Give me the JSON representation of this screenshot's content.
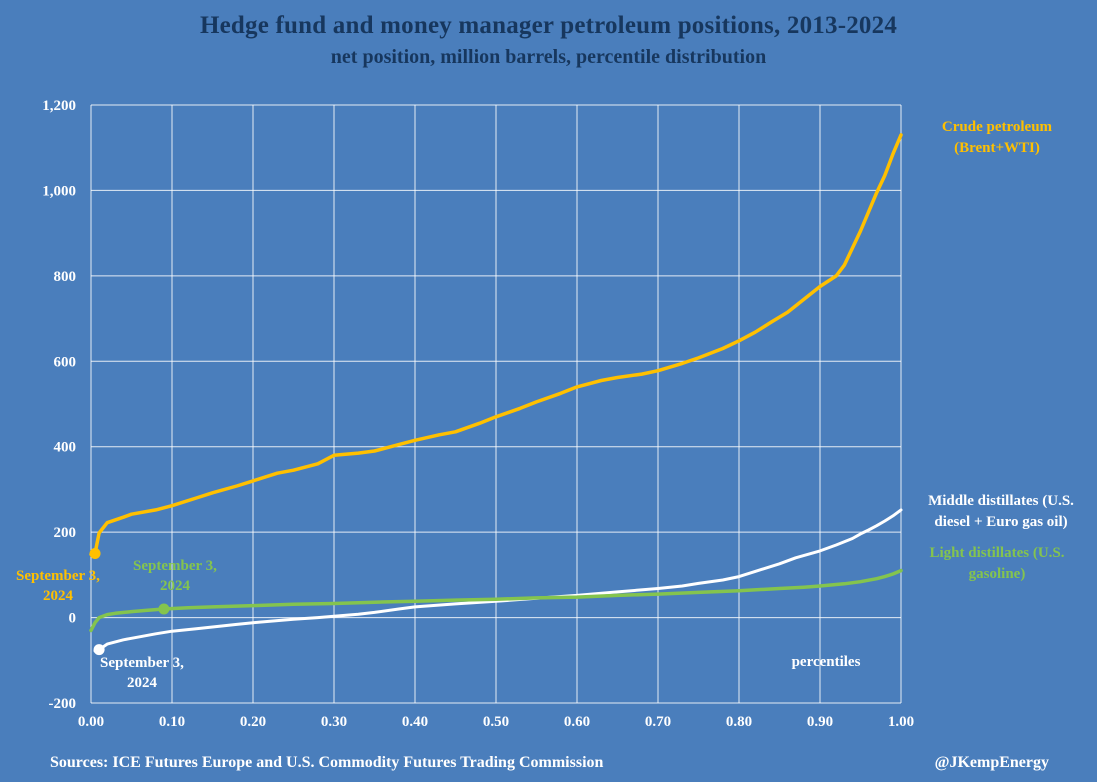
{
  "title": "Hedge fund and money manager petroleum positions, 2013-2024",
  "subtitle": "net position, million barrels, percentile distribution",
  "footer": {
    "sources": "Sources: ICE Futures Europe and U.S. Commodity Futures Trading Commission",
    "handle": "@JKempEnergy"
  },
  "colors": {
    "background": "#4A7EBC",
    "title_text": "#17375E",
    "axis_text": "#FFFFFF",
    "grid": "#FFFFFF",
    "crude": "#FFC000",
    "middle": "#FFFFFF",
    "light": "#84C44E"
  },
  "annotations": {
    "crude_date": "September 3,\n2024",
    "light_date": "September 3,\n2024",
    "middle_date": "September 3,\n2024",
    "x_axis_label": "percentiles"
  },
  "legend": {
    "crude": "Crude petroleum\n(Brent+WTI)",
    "middle": "Middle distillates (U.S.\ndiesel + Euro gas oil)",
    "light": "Light distillates (U.S.\ngasoline)"
  },
  "chart_data": {
    "type": "line",
    "title": "Hedge fund and money manager petroleum positions, 2013-2024",
    "subtitle": "net position, million barrels, percentile distribution",
    "xlabel": "percentiles",
    "ylabel": "net position, million barrels",
    "xlim": [
      0,
      1
    ],
    "ylim": [
      -200,
      1200
    ],
    "grid": true,
    "x_ticks": {
      "values": [
        0,
        0.1,
        0.2,
        0.3,
        0.4,
        0.5,
        0.6,
        0.7,
        0.8,
        0.9,
        1.0
      ],
      "labels": [
        "0.00",
        "0.10",
        "0.20",
        "0.30",
        "0.40",
        "0.50",
        "0.60",
        "0.70",
        "0.80",
        "0.90",
        "1.00"
      ]
    },
    "y_ticks": {
      "values": [
        -200,
        0,
        200,
        400,
        600,
        800,
        1000,
        1200
      ],
      "labels": [
        "-200",
        "0",
        "200",
        "400",
        "600",
        "800",
        "1,000",
        "1,200"
      ]
    },
    "series": [
      {
        "name": "Crude petroleum (Brent+WTI)",
        "color": "#FFC000",
        "width": 3.5,
        "marker": {
          "x": 0.005,
          "y": 150,
          "label": "September 3, 2024"
        },
        "points": [
          [
            0.0,
            148
          ],
          [
            0.005,
            150
          ],
          [
            0.01,
            198
          ],
          [
            0.02,
            222
          ],
          [
            0.04,
            235
          ],
          [
            0.05,
            242
          ],
          [
            0.08,
            252
          ],
          [
            0.1,
            262
          ],
          [
            0.13,
            280
          ],
          [
            0.15,
            292
          ],
          [
            0.18,
            308
          ],
          [
            0.2,
            320
          ],
          [
            0.23,
            338
          ],
          [
            0.25,
            345
          ],
          [
            0.28,
            360
          ],
          [
            0.3,
            380
          ],
          [
            0.33,
            385
          ],
          [
            0.35,
            390
          ],
          [
            0.38,
            405
          ],
          [
            0.4,
            415
          ],
          [
            0.43,
            428
          ],
          [
            0.45,
            435
          ],
          [
            0.48,
            455
          ],
          [
            0.5,
            470
          ],
          [
            0.53,
            490
          ],
          [
            0.55,
            505
          ],
          [
            0.58,
            525
          ],
          [
            0.6,
            540
          ],
          [
            0.63,
            555
          ],
          [
            0.65,
            562
          ],
          [
            0.68,
            570
          ],
          [
            0.7,
            578
          ],
          [
            0.73,
            595
          ],
          [
            0.75,
            608
          ],
          [
            0.78,
            630
          ],
          [
            0.8,
            648
          ],
          [
            0.82,
            668
          ],
          [
            0.84,
            692
          ],
          [
            0.86,
            715
          ],
          [
            0.88,
            745
          ],
          [
            0.9,
            775
          ],
          [
            0.92,
            800
          ],
          [
            0.93,
            825
          ],
          [
            0.94,
            865
          ],
          [
            0.95,
            905
          ],
          [
            0.96,
            950
          ],
          [
            0.97,
            995
          ],
          [
            0.98,
            1035
          ],
          [
            0.99,
            1085
          ],
          [
            1.0,
            1130
          ]
        ]
      },
      {
        "name": "Middle distillates (U.S. diesel + Euro gas oil)",
        "color": "#FFFFFF",
        "width": 3,
        "marker": {
          "x": 0.01,
          "y": -75,
          "label": "September 3, 2024"
        },
        "points": [
          [
            0.005,
            -78
          ],
          [
            0.01,
            -75
          ],
          [
            0.02,
            -62
          ],
          [
            0.04,
            -52
          ],
          [
            0.06,
            -45
          ],
          [
            0.08,
            -38
          ],
          [
            0.1,
            -32
          ],
          [
            0.13,
            -26
          ],
          [
            0.15,
            -22
          ],
          [
            0.18,
            -16
          ],
          [
            0.2,
            -12
          ],
          [
            0.25,
            -4
          ],
          [
            0.28,
            0
          ],
          [
            0.3,
            3
          ],
          [
            0.33,
            8
          ],
          [
            0.35,
            12
          ],
          [
            0.38,
            20
          ],
          [
            0.4,
            25
          ],
          [
            0.45,
            32
          ],
          [
            0.5,
            38
          ],
          [
            0.55,
            45
          ],
          [
            0.6,
            52
          ],
          [
            0.65,
            60
          ],
          [
            0.7,
            68
          ],
          [
            0.73,
            74
          ],
          [
            0.75,
            80
          ],
          [
            0.78,
            88
          ],
          [
            0.8,
            96
          ],
          [
            0.82,
            108
          ],
          [
            0.85,
            126
          ],
          [
            0.87,
            140
          ],
          [
            0.9,
            156
          ],
          [
            0.92,
            170
          ],
          [
            0.94,
            185
          ],
          [
            0.95,
            196
          ],
          [
            0.96,
            205
          ],
          [
            0.97,
            215
          ],
          [
            0.98,
            226
          ],
          [
            0.99,
            238
          ],
          [
            1.0,
            252
          ]
        ]
      },
      {
        "name": "Light distillates (U.S. gasoline)",
        "color": "#84C44E",
        "width": 3.5,
        "marker": {
          "x": 0.09,
          "y": 20,
          "label": "September 3, 2024"
        },
        "points": [
          [
            0.0,
            -30
          ],
          [
            0.005,
            -12
          ],
          [
            0.01,
            0
          ],
          [
            0.02,
            7
          ],
          [
            0.03,
            10
          ],
          [
            0.05,
            14
          ],
          [
            0.07,
            17
          ],
          [
            0.09,
            20
          ],
          [
            0.12,
            23
          ],
          [
            0.15,
            25
          ],
          [
            0.2,
            28
          ],
          [
            0.25,
            31
          ],
          [
            0.3,
            33
          ],
          [
            0.35,
            36
          ],
          [
            0.4,
            38
          ],
          [
            0.45,
            41
          ],
          [
            0.5,
            43
          ],
          [
            0.55,
            46
          ],
          [
            0.6,
            48
          ],
          [
            0.65,
            52
          ],
          [
            0.7,
            55
          ],
          [
            0.75,
            59
          ],
          [
            0.8,
            63
          ],
          [
            0.85,
            68
          ],
          [
            0.88,
            71
          ],
          [
            0.9,
            74
          ],
          [
            0.93,
            79
          ],
          [
            0.95,
            84
          ],
          [
            0.97,
            91
          ],
          [
            0.98,
            96
          ],
          [
            0.99,
            102
          ],
          [
            1.0,
            110
          ]
        ]
      }
    ]
  }
}
